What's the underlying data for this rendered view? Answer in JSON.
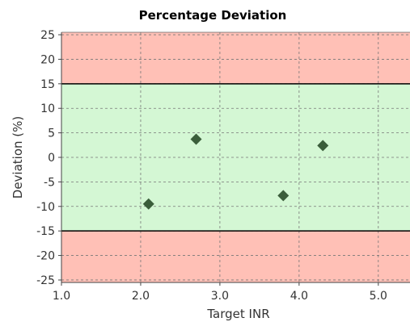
{
  "chart_data": {
    "type": "scatter",
    "title": "Percentage Deviation",
    "xlabel": "Target INR",
    "ylabel": "Deviation (%)",
    "xlim": [
      1.0,
      5.4
    ],
    "ylim": [
      -25.5,
      25.5
    ],
    "x_ticks": [
      "1.0",
      "2.0",
      "3.0",
      "4.0",
      "5.0"
    ],
    "x_tick_values": [
      1.0,
      2.0,
      3.0,
      4.0,
      5.0
    ],
    "y_ticks": [
      "25",
      "20",
      "15",
      "10",
      "5",
      "0",
      "-5",
      "-10",
      "-15",
      "-20",
      "-25"
    ],
    "y_tick_values": [
      25,
      20,
      15,
      10,
      5,
      0,
      -5,
      -10,
      -15,
      -20,
      -25
    ],
    "grid": true,
    "acceptable_range": [
      -15,
      15
    ],
    "colors": {
      "acceptable_band": "#d4f7d4",
      "out_of_range_band": "#ffc0b6",
      "marker": "#3b5e3b",
      "threshold_line": "#000000"
    },
    "points": [
      {
        "x": 2.1,
        "y": -9.5
      },
      {
        "x": 2.7,
        "y": 3.7
      },
      {
        "x": 3.8,
        "y": -7.8
      },
      {
        "x": 4.3,
        "y": 2.4
      }
    ]
  }
}
